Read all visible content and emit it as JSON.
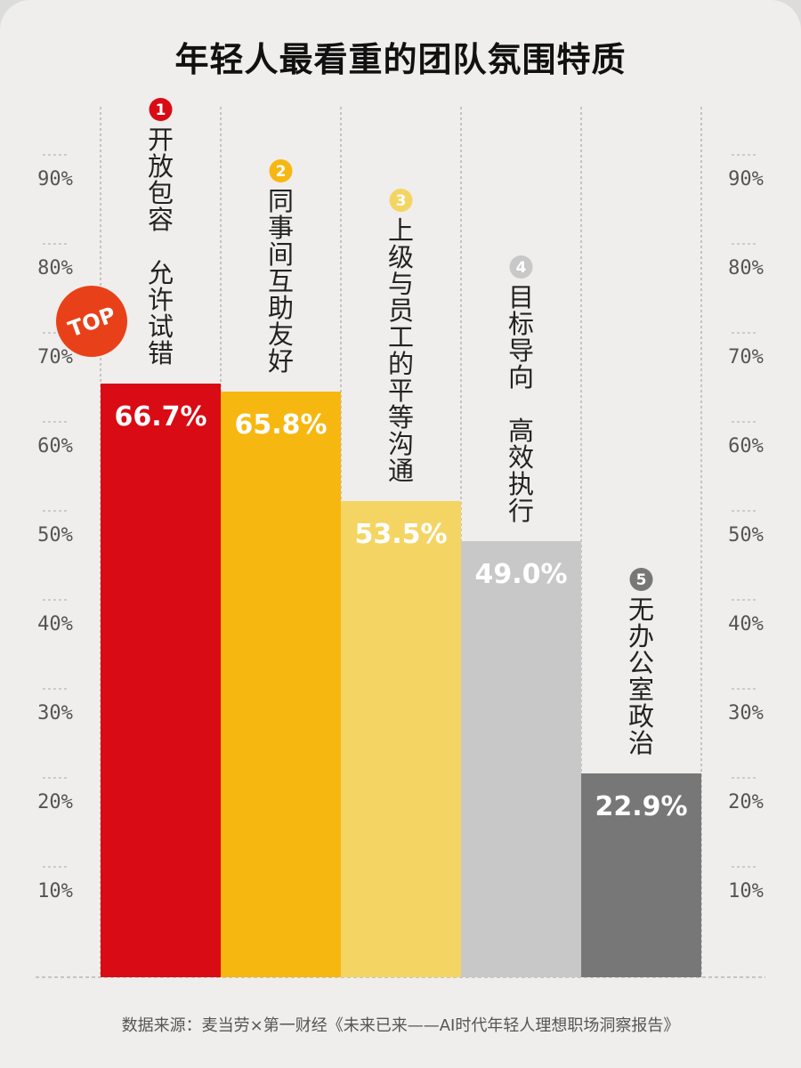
{
  "title": "年轻人最看重的团队氛围特质",
  "source": "数据来源：麦当劳×第一财经《未来已来——AI时代年轻人理想职场洞察报告》",
  "top_badge": "TOP",
  "chart_data": {
    "type": "bar",
    "title": "年轻人最看重的团队氛围特质",
    "categories": [
      "开放包容 允许试错",
      "同事间互助友好",
      "上级与员工的平等沟通",
      "目标导向 高效执行",
      "无办公室政治"
    ],
    "ranks": [
      "1",
      "2",
      "3",
      "4",
      "5"
    ],
    "values": [
      66.7,
      65.8,
      53.5,
      49.0,
      22.9
    ],
    "value_labels": [
      "66.7%",
      "65.8%",
      "53.5%",
      "49.0%",
      "22.9%"
    ],
    "colors": [
      "#d90b14",
      "#f7b711",
      "#f4d564",
      "#c8c8c8",
      "#777777"
    ],
    "rank_colors": [
      "#d90b14",
      "#f7b711",
      "#f4d564",
      "#c8c8c8",
      "#777777"
    ],
    "yticks": [
      "10%",
      "20%",
      "30%",
      "40%",
      "50%",
      "60%",
      "70%",
      "80%",
      "90%"
    ],
    "ytick_values": [
      10,
      20,
      30,
      40,
      50,
      60,
      70,
      80,
      90
    ],
    "ylim": [
      0,
      100
    ],
    "grid": true,
    "legend": "none"
  }
}
